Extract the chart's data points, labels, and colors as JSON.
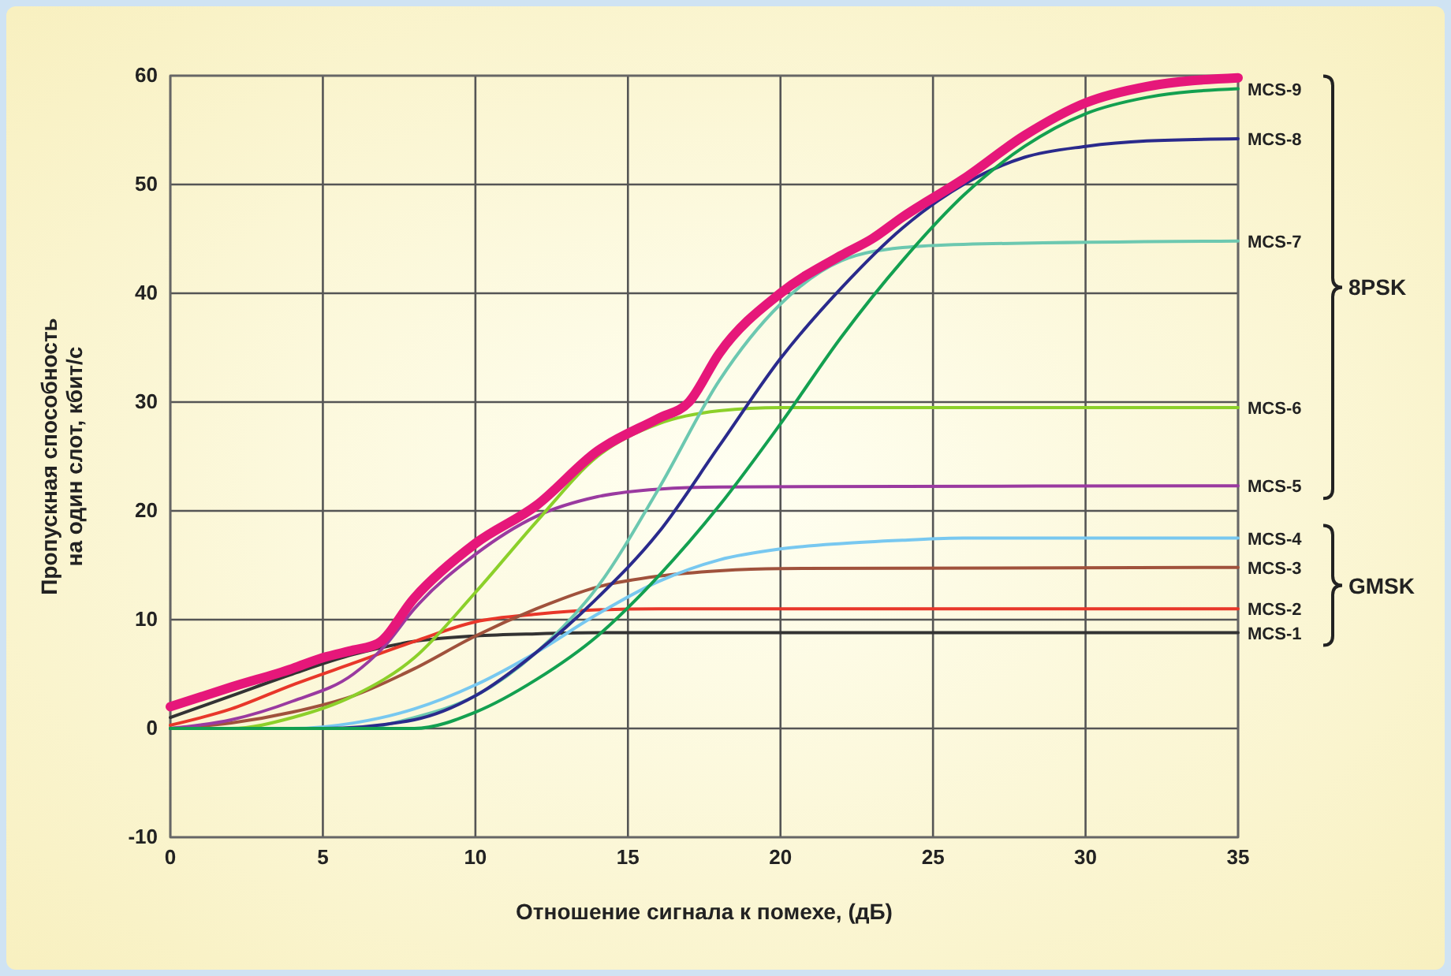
{
  "chart_data": {
    "type": "line",
    "xlabel": "Отношение сигнала к помехе, (дБ)",
    "ylabel": "Пропускная способность\nна один слот, кбит/с",
    "xlim": [
      0,
      35
    ],
    "ylim": [
      -10,
      60
    ],
    "xticks": [
      0,
      5,
      10,
      15,
      20,
      25,
      30,
      35
    ],
    "yticks": [
      -10,
      0,
      10,
      20,
      30,
      40,
      50,
      60
    ],
    "grid": true,
    "marker": "none",
    "line_style": "solid",
    "annotations": [
      "8PSK",
      "GMSK"
    ],
    "series": [
      {
        "name": "MCS-1",
        "color": "#333333",
        "x": [
          0,
          2,
          4,
          6,
          8,
          10,
          12,
          14,
          35
        ],
        "values": [
          1,
          3,
          5,
          6.8,
          8,
          8.5,
          8.7,
          8.8,
          8.8
        ]
      },
      {
        "name": "MCS-2",
        "color": "#e8372a",
        "x": [
          0,
          2,
          4,
          6,
          8,
          10,
          12,
          14,
          16,
          35
        ],
        "values": [
          0.3,
          1.8,
          4,
          6,
          8,
          9.8,
          10.5,
          10.9,
          11,
          11
        ]
      },
      {
        "name": "MCS-3",
        "color": "#a0523c",
        "x": [
          0,
          2,
          4,
          6,
          8,
          10,
          12,
          14,
          16,
          18,
          20,
          35
        ],
        "values": [
          0,
          0.5,
          1.5,
          3,
          5.5,
          8.5,
          11,
          13,
          14,
          14.5,
          14.7,
          14.8
        ]
      },
      {
        "name": "MCS-4",
        "color": "#78c8f0",
        "x": [
          0,
          4,
          6,
          8,
          10,
          12,
          14,
          16,
          18,
          20,
          22,
          24,
          26,
          35
        ],
        "values": [
          0,
          0,
          0.5,
          1.8,
          4,
          7,
          10.5,
          13.5,
          15.5,
          16.5,
          17,
          17.3,
          17.5,
          17.5
        ]
      },
      {
        "name": "MCS-5",
        "color": "#9a3aa0",
        "x": [
          0,
          2,
          4,
          6,
          7,
          8,
          10,
          12,
          14,
          16,
          18,
          35
        ],
        "values": [
          0,
          0.8,
          2.5,
          5,
          7.5,
          11,
          16,
          19.5,
          21.3,
          22,
          22.2,
          22.3
        ]
      },
      {
        "name": "MCS-6",
        "color": "#8cd02a",
        "x": [
          0,
          2,
          4,
          6,
          8,
          10,
          12,
          14,
          16,
          18,
          20,
          35
        ],
        "values": [
          0,
          0,
          1,
          3,
          6.5,
          12.5,
          19,
          25,
          28,
          29.2,
          29.5,
          29.5
        ]
      },
      {
        "name": "MCS-7",
        "color": "#6cc8b0",
        "x": [
          0,
          6,
          8,
          10,
          12,
          14,
          16,
          18,
          20,
          22,
          24,
          26,
          35
        ],
        "values": [
          0,
          0,
          1,
          3,
          7,
          13,
          22,
          32,
          39,
          43,
          44.2,
          44.5,
          44.8
        ]
      },
      {
        "name": "MCS-8",
        "color": "#2a2a8c",
        "x": [
          0,
          5,
          8,
          10,
          12,
          14,
          16,
          18,
          20,
          22,
          24,
          26,
          28,
          30,
          32,
          35
        ],
        "values": [
          0,
          0,
          0.8,
          3,
          7,
          12,
          18,
          26,
          34,
          40.5,
          46,
          50,
          52.5,
          53.5,
          54,
          54.2
        ]
      },
      {
        "name": "MCS-9",
        "color": "#13a050",
        "x": [
          0,
          8,
          10,
          12,
          14,
          16,
          18,
          20,
          22,
          24,
          26,
          28,
          30,
          32,
          35
        ],
        "values": [
          0,
          0,
          1.5,
          4.5,
          8.5,
          14,
          20.5,
          28,
          36,
          43,
          49,
          53.5,
          56.5,
          58,
          58.8
        ]
      },
      {
        "color": "#e6177a",
        "x": [
          0,
          2,
          4,
          5,
          6,
          6.8,
          8,
          10,
          12,
          14,
          16,
          17,
          18,
          20,
          22,
          23,
          24,
          26,
          28,
          30,
          32,
          35
        ],
        "values": [
          2,
          3.8,
          5.5,
          6.5,
          7.2,
          7.8,
          12,
          17,
          20.5,
          25.5,
          28.5,
          30,
          34.5,
          40,
          43.5,
          45,
          47,
          50.5,
          54.5,
          57.5,
          59,
          59.8
        ]
      }
    ]
  }
}
